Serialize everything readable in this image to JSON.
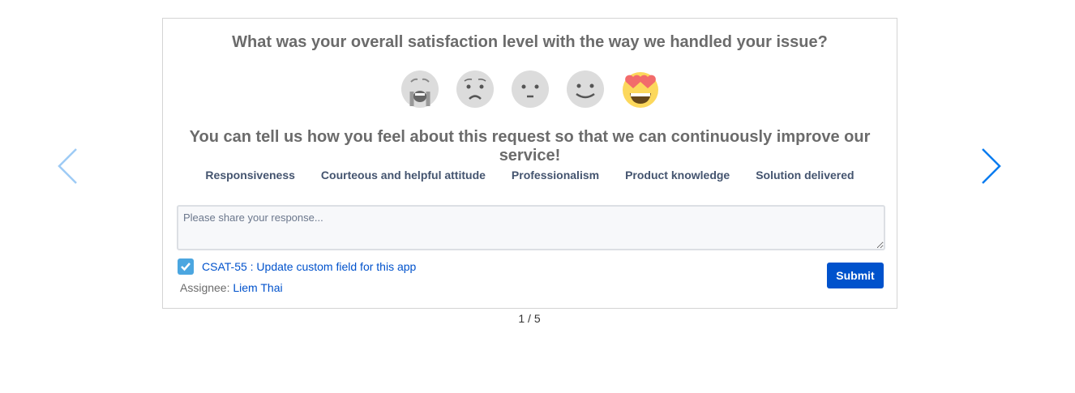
{
  "question": "What was your overall satisfaction level with the way we handled your issue?",
  "emojis": [
    {
      "icon": "crying-face-icon",
      "selected": false
    },
    {
      "icon": "worried-face-icon",
      "selected": false
    },
    {
      "icon": "neutral-face-icon",
      "selected": false
    },
    {
      "icon": "smiling-face-icon",
      "selected": false
    },
    {
      "icon": "heart-eyes-face-icon",
      "selected": true
    }
  ],
  "subheading": "You can tell us how you feel about this request so that we can continuously improve our service!",
  "tags": [
    "Responsiveness",
    "Courteous and helpful attitude",
    "Professionalism",
    "Product knowledge",
    "Solution delivered"
  ],
  "response": {
    "value": "",
    "placeholder": "Please share your response..."
  },
  "issue": {
    "checked": true,
    "label": "CSAT-55 : Update custom field for this app"
  },
  "assignee": {
    "label": "Assignee:",
    "name": "Liem Thai"
  },
  "submit_label": "Submit",
  "pager": "1 / 5",
  "colors": {
    "accent": "#0052cc",
    "prev_arrow": "#9ecbf5",
    "next_arrow": "#0b7cf0"
  }
}
